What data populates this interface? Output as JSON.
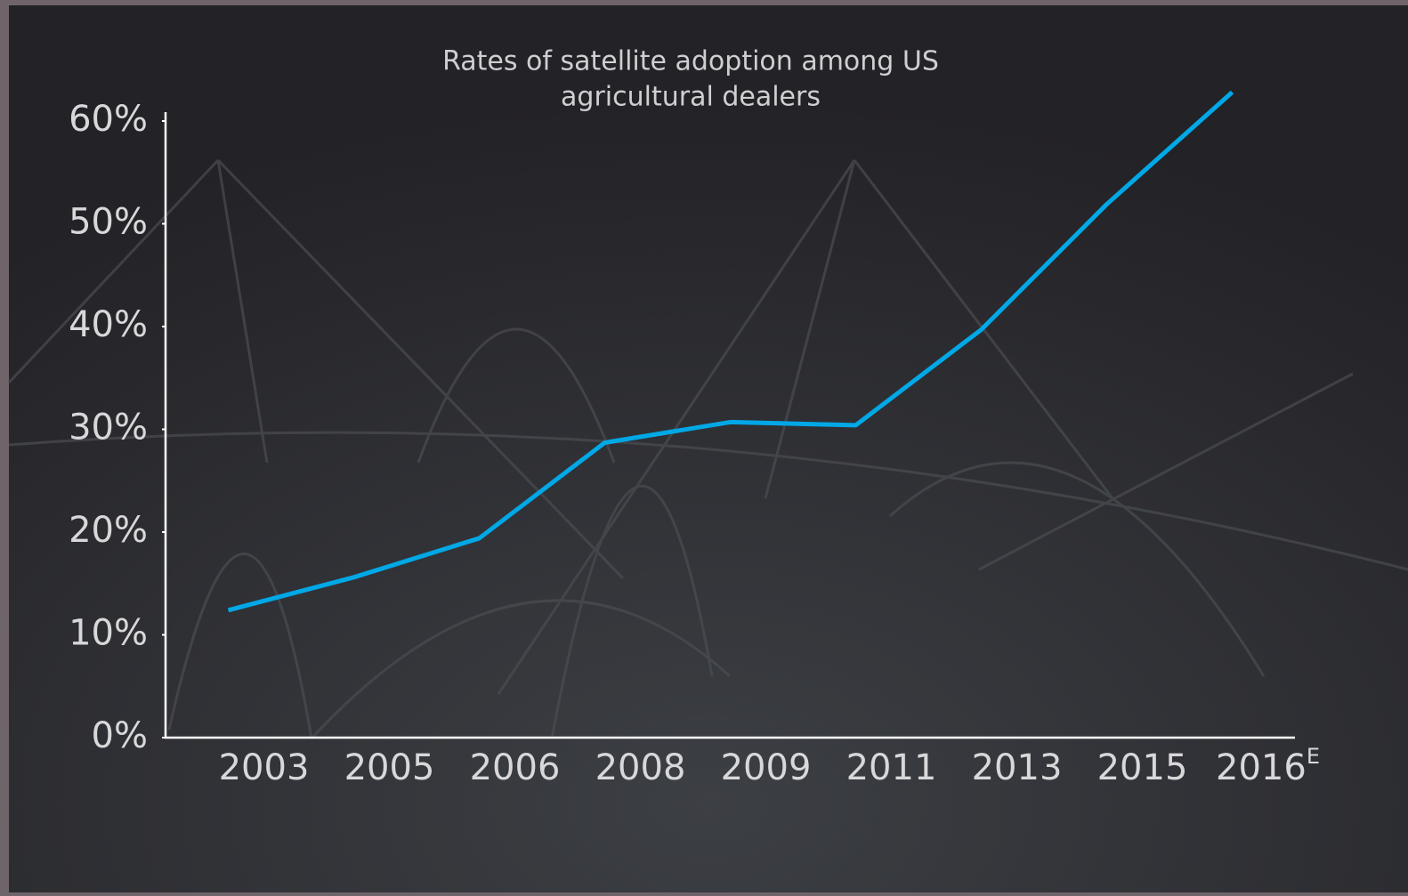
{
  "chart_data": {
    "type": "line",
    "title": [
      "Rates of satellite adoption among US",
      "agricultural dealers"
    ],
    "categories": [
      "2003",
      "2005",
      "2006",
      "2008",
      "2009",
      "2011",
      "2013",
      "2015",
      "2016"
    ],
    "estimate_mark": "E",
    "series": [
      {
        "color": "#00a8e6",
        "values": [
          12.4,
          15.6,
          19.4,
          28.7,
          30.7,
          30.4,
          39.7,
          51.9,
          62.8
        ]
      }
    ],
    "ylim": [
      0,
      60
    ],
    "yticks": [
      {
        "value": 0,
        "label": "0%"
      },
      {
        "value": 10,
        "label": "10%"
      },
      {
        "value": 20,
        "label": "20%"
      },
      {
        "value": 30,
        "label": "30%"
      },
      {
        "value": 40,
        "label": "40%"
      },
      {
        "value": 50,
        "label": "50%"
      },
      {
        "value": 60,
        "label": "60%"
      }
    ]
  }
}
